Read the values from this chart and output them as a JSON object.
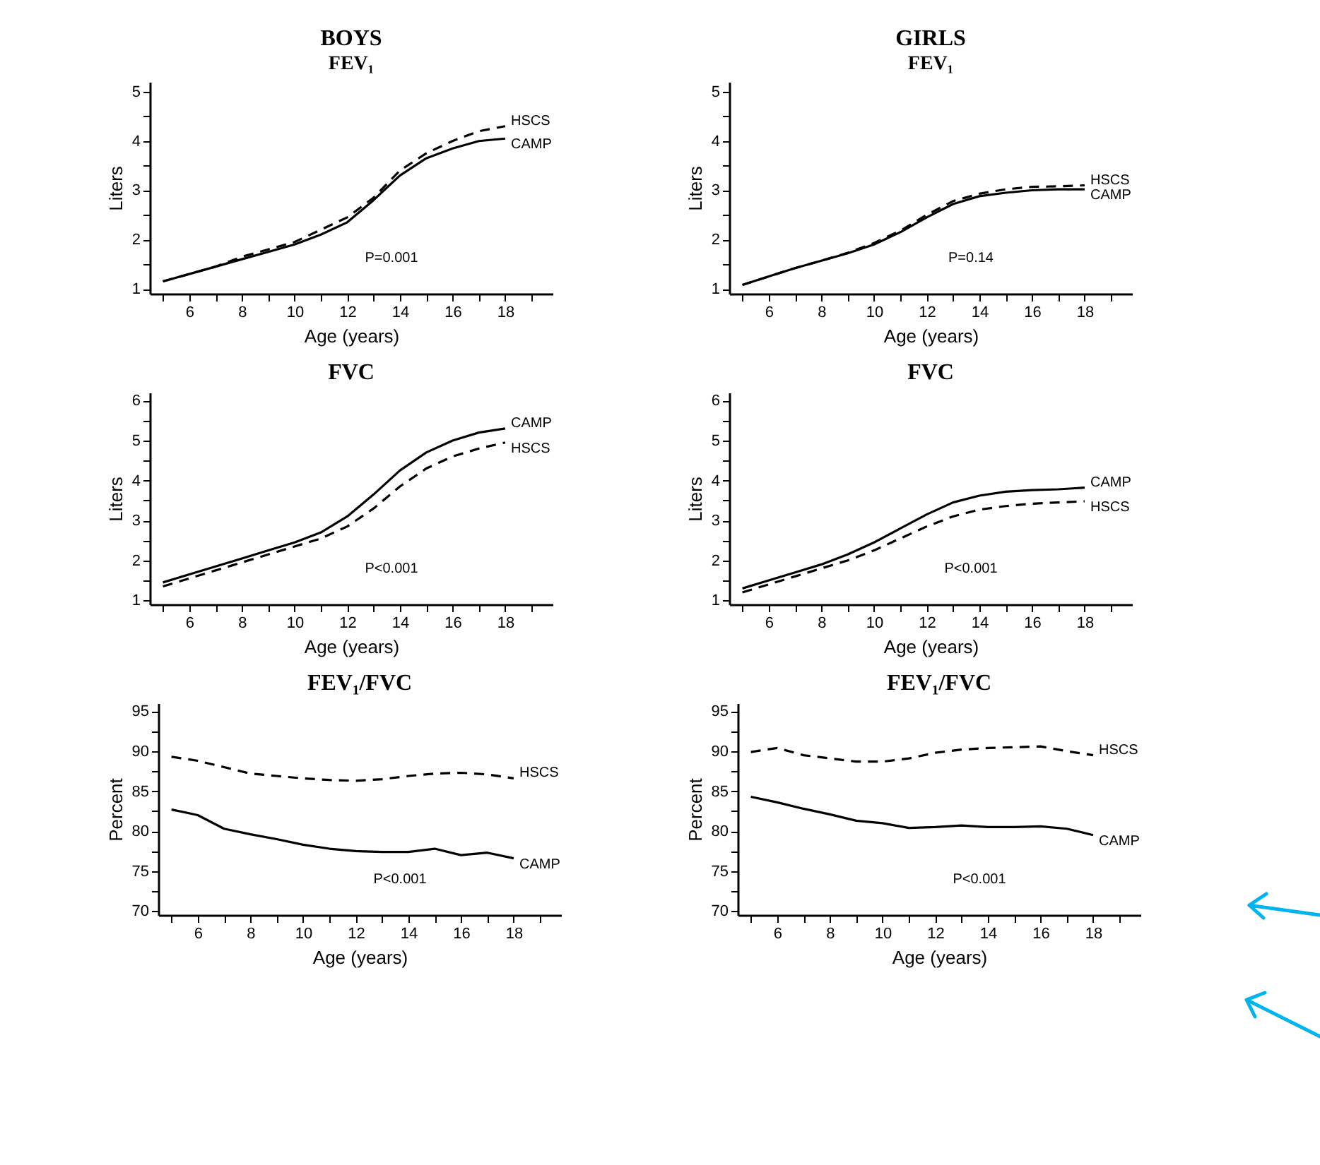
{
  "chart_data": [
    {
      "type": "line",
      "title": "BOYS",
      "subtitle": "FEV₁",
      "xlabel": "Age (years)",
      "ylabel": "Liters",
      "annotations": [
        "P=0.001"
      ],
      "x": [
        5,
        6,
        7,
        8,
        9,
        10,
        11,
        12,
        13,
        14,
        15,
        16,
        17,
        18
      ],
      "xlim": [
        4.5,
        19.8
      ],
      "xticks": [
        {
          "value": 5,
          "label": null
        },
        6,
        {
          "value": 7,
          "label": null
        },
        8,
        {
          "value": 9,
          "label": null
        },
        10,
        {
          "value": 11,
          "label": null
        },
        12,
        {
          "value": 13,
          "label": null
        },
        14,
        {
          "value": 15,
          "label": null
        },
        16,
        {
          "value": 17,
          "label": null
        },
        18,
        {
          "value": 19,
          "label": null
        }
      ],
      "ylim": [
        0.9,
        5.2
      ],
      "yticks": [
        1,
        {
          "value": 1.5,
          "label": null
        },
        2,
        {
          "value": 2.5,
          "label": null
        },
        3,
        {
          "value": 3.5,
          "label": null
        },
        4,
        {
          "value": 4.5,
          "label": null
        },
        5
      ],
      "series": [
        {
          "name": "HSCS",
          "color": "#000000",
          "line_style": "dashed",
          "values": [
            1.15,
            1.3,
            1.45,
            1.65,
            1.8,
            1.95,
            2.2,
            2.45,
            2.85,
            3.4,
            3.75,
            4.0,
            4.2,
            4.3
          ]
        },
        {
          "name": "CAMP",
          "color": "#000000",
          "line_style": "solid",
          "values": [
            1.15,
            1.3,
            1.45,
            1.6,
            1.75,
            1.9,
            2.1,
            2.35,
            2.8,
            3.3,
            3.65,
            3.85,
            4.0,
            4.05
          ]
        }
      ]
    },
    {
      "type": "line",
      "title": "GIRLS",
      "subtitle": "FEV₁",
      "xlabel": "Age (years)",
      "ylabel": "Liters",
      "annotations": [
        "P=0.14"
      ],
      "x": [
        5,
        6,
        7,
        8,
        9,
        10,
        11,
        12,
        13,
        14,
        15,
        16,
        17,
        18
      ],
      "xlim": [
        4.5,
        19.8
      ],
      "xticks": [
        {
          "value": 5,
          "label": null
        },
        6,
        {
          "value": 7,
          "label": null
        },
        8,
        {
          "value": 9,
          "label": null
        },
        10,
        {
          "value": 11,
          "label": null
        },
        12,
        {
          "value": 13,
          "label": null
        },
        14,
        {
          "value": 15,
          "label": null
        },
        16,
        {
          "value": 17,
          "label": null
        },
        18,
        {
          "value": 19,
          "label": null
        }
      ],
      "ylim": [
        0.9,
        5.2
      ],
      "yticks": [
        1,
        {
          "value": 1.5,
          "label": null
        },
        2,
        {
          "value": 2.5,
          "label": null
        },
        3,
        {
          "value": 3.5,
          "label": null
        },
        4,
        {
          "value": 4.5,
          "label": null
        },
        5
      ],
      "series": [
        {
          "name": "HSCS",
          "color": "#000000",
          "line_style": "dashed",
          "values": [
            1.08,
            1.25,
            1.42,
            1.57,
            1.73,
            1.93,
            2.18,
            2.5,
            2.78,
            2.93,
            3.02,
            3.07,
            3.08,
            3.1
          ]
        },
        {
          "name": "CAMP",
          "color": "#000000",
          "line_style": "solid",
          "values": [
            1.08,
            1.25,
            1.42,
            1.57,
            1.72,
            1.9,
            2.15,
            2.45,
            2.72,
            2.88,
            2.95,
            3.0,
            3.02,
            3.02
          ]
        }
      ]
    },
    {
      "type": "line",
      "title": "FVC",
      "xlabel": "Age (years)",
      "ylabel": "Liters",
      "annotations": [
        "P<0.001"
      ],
      "x": [
        5,
        6,
        7,
        8,
        9,
        10,
        11,
        12,
        13,
        14,
        15,
        16,
        17,
        18
      ],
      "xlim": [
        4.5,
        19.8
      ],
      "xticks": [
        {
          "value": 5,
          "label": null
        },
        6,
        {
          "value": 7,
          "label": null
        },
        8,
        {
          "value": 9,
          "label": null
        },
        10,
        {
          "value": 11,
          "label": null
        },
        12,
        {
          "value": 13,
          "label": null
        },
        14,
        {
          "value": 15,
          "label": null
        },
        16,
        {
          "value": 17,
          "label": null
        },
        18,
        {
          "value": 19,
          "label": null
        }
      ],
      "ylim": [
        0.9,
        6.2
      ],
      "yticks": [
        1,
        {
          "value": 1.5,
          "label": null
        },
        2,
        {
          "value": 2.5,
          "label": null
        },
        3,
        {
          "value": 3.5,
          "label": null
        },
        4,
        {
          "value": 4.5,
          "label": null
        },
        5,
        {
          "value": 5.5,
          "label": null
        },
        6
      ],
      "series": [
        {
          "name": "CAMP",
          "color": "#000000",
          "line_style": "solid",
          "values": [
            1.45,
            1.65,
            1.85,
            2.05,
            2.25,
            2.45,
            2.7,
            3.1,
            3.65,
            4.25,
            4.7,
            5.0,
            5.2,
            5.3
          ]
        },
        {
          "name": "HSCS",
          "color": "#000000",
          "line_style": "dashed",
          "values": [
            1.35,
            1.55,
            1.75,
            1.95,
            2.15,
            2.35,
            2.55,
            2.85,
            3.3,
            3.85,
            4.3,
            4.6,
            4.8,
            4.95
          ]
        }
      ]
    },
    {
      "type": "line",
      "title": "FVC",
      "xlabel": "Age (years)",
      "ylabel": "Liters",
      "annotations": [
        "P<0.001"
      ],
      "x": [
        5,
        6,
        7,
        8,
        9,
        10,
        11,
        12,
        13,
        14,
        15,
        16,
        17,
        18
      ],
      "xlim": [
        4.5,
        19.8
      ],
      "xticks": [
        {
          "value": 5,
          "label": null
        },
        6,
        {
          "value": 7,
          "label": null
        },
        8,
        {
          "value": 9,
          "label": null
        },
        10,
        {
          "value": 11,
          "label": null
        },
        12,
        {
          "value": 13,
          "label": null
        },
        14,
        {
          "value": 15,
          "label": null
        },
        16,
        {
          "value": 17,
          "label": null
        },
        18,
        {
          "value": 19,
          "label": null
        }
      ],
      "ylim": [
        0.9,
        6.2
      ],
      "yticks": [
        1,
        {
          "value": 1.5,
          "label": null
        },
        2,
        {
          "value": 2.5,
          "label": null
        },
        3,
        {
          "value": 3.5,
          "label": null
        },
        4,
        {
          "value": 4.5,
          "label": null
        },
        5,
        {
          "value": 5.5,
          "label": null
        },
        6
      ],
      "series": [
        {
          "name": "CAMP",
          "color": "#000000",
          "line_style": "solid",
          "values": [
            1.3,
            1.5,
            1.7,
            1.9,
            2.15,
            2.45,
            2.8,
            3.15,
            3.45,
            3.62,
            3.72,
            3.76,
            3.78,
            3.82
          ]
        },
        {
          "name": "HSCS",
          "color": "#000000",
          "line_style": "dashed",
          "values": [
            1.2,
            1.4,
            1.6,
            1.8,
            2.0,
            2.25,
            2.55,
            2.85,
            3.1,
            3.27,
            3.36,
            3.42,
            3.45,
            3.48
          ]
        }
      ]
    },
    {
      "type": "line",
      "title": "FEV₁/FVC",
      "xlabel": "Age (years)",
      "ylabel": "Percent",
      "annotations": [
        "P<0.001"
      ],
      "x": [
        5,
        6,
        7,
        8,
        9,
        10,
        11,
        12,
        13,
        14,
        15,
        16,
        17,
        18
      ],
      "xlim": [
        4.5,
        19.8
      ],
      "xticks": [
        {
          "value": 5,
          "label": null
        },
        6,
        {
          "value": 7,
          "label": null
        },
        8,
        {
          "value": 9,
          "label": null
        },
        10,
        {
          "value": 11,
          "label": null
        },
        12,
        {
          "value": 13,
          "label": null
        },
        14,
        {
          "value": 15,
          "label": null
        },
        16,
        {
          "value": 17,
          "label": null
        },
        18,
        {
          "value": 19,
          "label": null
        }
      ],
      "ylim": [
        69.5,
        96
      ],
      "yticks": [
        70,
        {
          "value": 72.5,
          "label": null
        },
        75,
        {
          "value": 77.5,
          "label": null
        },
        80,
        {
          "value": 82.5,
          "label": null
        },
        85,
        {
          "value": 87.5,
          "label": null
        },
        90,
        {
          "value": 92.5,
          "label": null
        },
        95
      ],
      "series": [
        {
          "name": "HSCS",
          "color": "#000000",
          "line_style": "dashed",
          "values": [
            89.3,
            88.8,
            88.0,
            87.2,
            86.9,
            86.6,
            86.4,
            86.3,
            86.5,
            86.9,
            87.2,
            87.3,
            87.1,
            86.6
          ]
        },
        {
          "name": "CAMP",
          "color": "#000000",
          "line_style": "solid",
          "values": [
            82.7,
            82.0,
            80.3,
            79.6,
            79.0,
            78.3,
            77.8,
            77.5,
            77.4,
            77.4,
            77.8,
            77.0,
            77.3,
            76.6
          ]
        }
      ]
    },
    {
      "type": "line",
      "title": "FEV₁/FVC",
      "xlabel": "Age (years)",
      "ylabel": "Percent",
      "annotations": [
        "P<0.001"
      ],
      "x": [
        5,
        6,
        7,
        8,
        9,
        10,
        11,
        12,
        13,
        14,
        15,
        16,
        17,
        18
      ],
      "xlim": [
        4.5,
        19.8
      ],
      "xticks": [
        {
          "value": 5,
          "label": null
        },
        6,
        {
          "value": 7,
          "label": null
        },
        8,
        {
          "value": 9,
          "label": null
        },
        10,
        {
          "value": 11,
          "label": null
        },
        12,
        {
          "value": 13,
          "label": null
        },
        14,
        {
          "value": 15,
          "label": null
        },
        16,
        {
          "value": 17,
          "label": null
        },
        18,
        {
          "value": 19,
          "label": null
        }
      ],
      "ylim": [
        69.5,
        96
      ],
      "yticks": [
        70,
        {
          "value": 72.5,
          "label": null
        },
        75,
        {
          "value": 77.5,
          "label": null
        },
        80,
        {
          "value": 82.5,
          "label": null
        },
        85,
        {
          "value": 87.5,
          "label": null
        },
        90,
        {
          "value": 92.5,
          "label": null
        },
        95
      ],
      "series": [
        {
          "name": "HSCS",
          "color": "#000000",
          "line_style": "dashed",
          "values": [
            89.9,
            90.4,
            89.5,
            89.1,
            88.7,
            88.7,
            89.1,
            89.8,
            90.2,
            90.4,
            90.5,
            90.6,
            90.0,
            89.5
          ]
        },
        {
          "name": "CAMP",
          "color": "#000000",
          "line_style": "solid",
          "values": [
            84.3,
            83.6,
            82.8,
            82.1,
            81.3,
            81.0,
            80.4,
            80.5,
            80.7,
            80.5,
            80.5,
            80.6,
            80.3,
            79.5
          ]
        }
      ]
    }
  ]
}
